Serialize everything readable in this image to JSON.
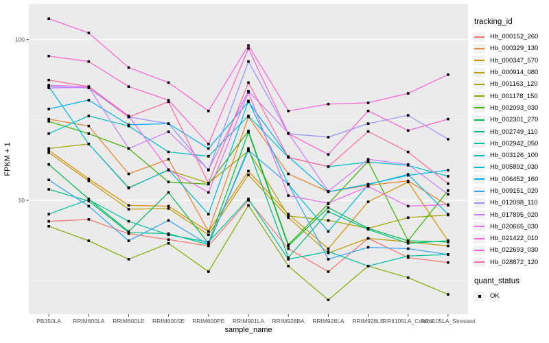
{
  "panel": {
    "bg": "#EBEBEB",
    "grid": "#FFFFFF",
    "tick_color": "#333333",
    "point_color": "#000000"
  },
  "chart_data": {
    "type": "line",
    "title": "",
    "xlabel": "sample_name",
    "ylabel": "FPKM + 1",
    "y_scale": "log10",
    "y_ticks": [
      100,
      10
    ],
    "y_minor_ticks": [
      31.623,
      3.162
    ],
    "ylim": [
      1.95,
      165
    ],
    "legend_position": "right",
    "grid": true,
    "categories": [
      "PB350LA",
      "RRIM600LA",
      "RRIM600LE",
      "RRIM600SE",
      "RRIM600PE",
      "RRIM901LA",
      "RRIM928BA",
      "RRIM928LA",
      "RRIM928LE",
      "RRII105LA_Control",
      "RRII105LA_Stressed"
    ],
    "series": [
      {
        "name": "Hb_000152_260",
        "color": "#F8766D",
        "values": [
          7.4,
          7.6,
          6.2,
          5.7,
          5.2,
          10.0,
          5.0,
          3.6,
          5.8,
          4.4,
          4.1
        ]
      },
      {
        "name": "Hb_000329_130",
        "color": "#EA8331",
        "values": [
          32,
          29,
          14.6,
          18,
          6.4,
          33,
          14.6,
          11.3,
          12.4,
          13.2,
          9.3
        ]
      },
      {
        "name": "Hb_000347_570",
        "color": "#D89000",
        "values": [
          20.5,
          13.6,
          9.3,
          9.2,
          6.4,
          15.2,
          8.2,
          5.0,
          9.8,
          13.0,
          5.6
        ]
      },
      {
        "name": "Hb_000914_080",
        "color": "#C09B00",
        "values": [
          19.8,
          13.2,
          8.8,
          8.9,
          6.1,
          14.4,
          7.8,
          4.7,
          5.8,
          5.5,
          5.2
        ]
      },
      {
        "name": "Hb_001163_120",
        "color": "#A3A500",
        "values": [
          21.0,
          22.4,
          12.0,
          15.4,
          12.8,
          20.3,
          8.0,
          7.5,
          6.7,
          7.8,
          8.1
        ]
      },
      {
        "name": "Hb_001178_150",
        "color": "#7CAE00",
        "values": [
          6.9,
          5.6,
          4.3,
          5.4,
          3.6,
          9.3,
          3.9,
          2.4,
          3.9,
          3.3,
          2.6
        ]
      },
      {
        "name": "Hb_002093_030",
        "color": "#39B600",
        "values": [
          31,
          26,
          21,
          13,
          12.6,
          27,
          5.3,
          9.5,
          17.5,
          5.6,
          11.5
        ]
      },
      {
        "name": "Hb_002301_270",
        "color": "#00BB4E",
        "values": [
          16.7,
          10.2,
          6.4,
          11.2,
          5.4,
          26.5,
          5.2,
          9.0,
          6.7,
          5.6,
          5.5
        ]
      },
      {
        "name": "Hb_002749_110",
        "color": "#00BF7D",
        "values": [
          11.7,
          9.9,
          6.3,
          6.2,
          5.3,
          21,
          4.4,
          8.5,
          6.6,
          5.4,
          5.6
        ]
      },
      {
        "name": "Hb_002942_050",
        "color": "#00C1A3",
        "values": [
          8.2,
          10.1,
          7.4,
          6.1,
          5.5,
          10.2,
          4.3,
          4.8,
          3.9,
          4.5,
          4.6
        ]
      },
      {
        "name": "Hb_003126_100",
        "color": "#00BFC4",
        "values": [
          26,
          33.5,
          29,
          20,
          18.8,
          33.5,
          18.5,
          16.2,
          17.3,
          16.5,
          14.1
        ]
      },
      {
        "name": "Hb_005892_030",
        "color": "#00BAE0",
        "values": [
          51,
          22.4,
          11.9,
          15.5,
          8.2,
          41.5,
          12.6,
          6.4,
          12.5,
          14.5,
          8.2
        ]
      },
      {
        "name": "Hb_006452_160",
        "color": "#00B0F6",
        "values": [
          37,
          42,
          29.5,
          30,
          21,
          41,
          18.7,
          11.3,
          12.6,
          14.3,
          15.4
        ]
      },
      {
        "name": "Hb_009151_020",
        "color": "#35A2FF",
        "values": [
          13.4,
          9.2,
          5.6,
          7.5,
          5.3,
          20.5,
          12.6,
          4.3,
          5.1,
          5.0,
          4.6
        ]
      },
      {
        "name": "Hb_012098_110",
        "color": "#9590FF",
        "values": [
          51,
          50,
          33,
          30,
          15.4,
          73,
          26,
          24.7,
          30,
          33.8,
          24
        ]
      },
      {
        "name": "Hb_017895_020",
        "color": "#C77CFF",
        "values": [
          50,
          50.5,
          21,
          26.7,
          15.5,
          47.8,
          26.2,
          11.4,
          18,
          16.7,
          10.9
        ]
      },
      {
        "name": "Hb_020665_030",
        "color": "#E76BF3",
        "values": [
          52,
          51,
          33.5,
          15.5,
          11.2,
          47,
          10.7,
          9.6,
          12.2,
          9.2,
          9.4
        ]
      },
      {
        "name": "Hb_021422_010",
        "color": "#FA62DB",
        "values": [
          135,
          110,
          67,
          54,
          36,
          92,
          36,
          39.7,
          40.4,
          46.3,
          60.5
        ]
      },
      {
        "name": "Hb_022693_030",
        "color": "#FF61CC",
        "values": [
          79,
          73,
          51,
          42,
          22.4,
          88,
          26,
          19.3,
          36,
          27.2,
          32
        ]
      },
      {
        "name": "Hb_028872_120",
        "color": "#FF67A4",
        "values": [
          56,
          51,
          33,
          41,
          12.8,
          54,
          18.5,
          16.2,
          26.8,
          20,
          12.7
        ]
      }
    ],
    "legend": {
      "series_title": "tracking_id",
      "shape_title": "quant_status",
      "shape_items": [
        {
          "label": "OK"
        }
      ]
    }
  }
}
